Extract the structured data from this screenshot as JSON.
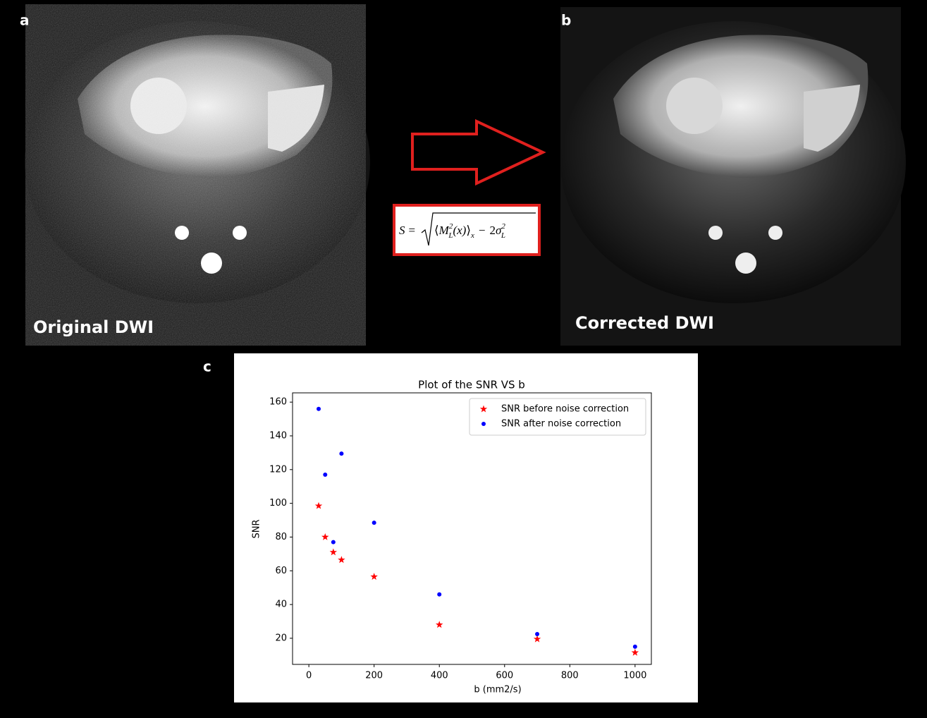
{
  "panels": {
    "a": "a",
    "b": "b",
    "c": "c",
    "left_caption": "Original DWI",
    "right_caption": "Corrected DWI"
  },
  "formula": {
    "lhs": "S",
    "eq": "=",
    "m": "M",
    "m_sub": "L",
    "m_sup": "2",
    "arg": "(x)",
    "avg_sub": "x",
    "minus": "−",
    "coef": "2",
    "sigma": "σ",
    "sigma_sub": "L",
    "sigma_sup": "2"
  },
  "chart_data": {
    "type": "scatter",
    "title": "Plot of the SNR VS b",
    "xlabel": "b  (mm2/s)",
    "ylabel": "SNR",
    "x": [
      30,
      50,
      75,
      100,
      200,
      400,
      700,
      1000
    ],
    "series": [
      {
        "name": "SNR before noise correction",
        "color": "#ff0000",
        "marker": "star",
        "values": [
          98.5,
          80,
          71,
          66.5,
          56.5,
          28,
          19.5,
          11.5
        ]
      },
      {
        "name": "SNR after noise correction",
        "color": "#0000ff",
        "marker": "circle",
        "values": [
          156,
          117,
          77,
          129.5,
          88.5,
          46,
          22.5,
          15
        ]
      }
    ],
    "xlim": [
      -50,
      1050
    ],
    "ylim": [
      4.5,
      165.5
    ],
    "xticks": [
      0,
      200,
      400,
      600,
      800,
      1000
    ],
    "yticks": [
      20,
      40,
      60,
      80,
      100,
      120,
      140,
      160
    ],
    "legend": "upper right",
    "grid": false
  }
}
